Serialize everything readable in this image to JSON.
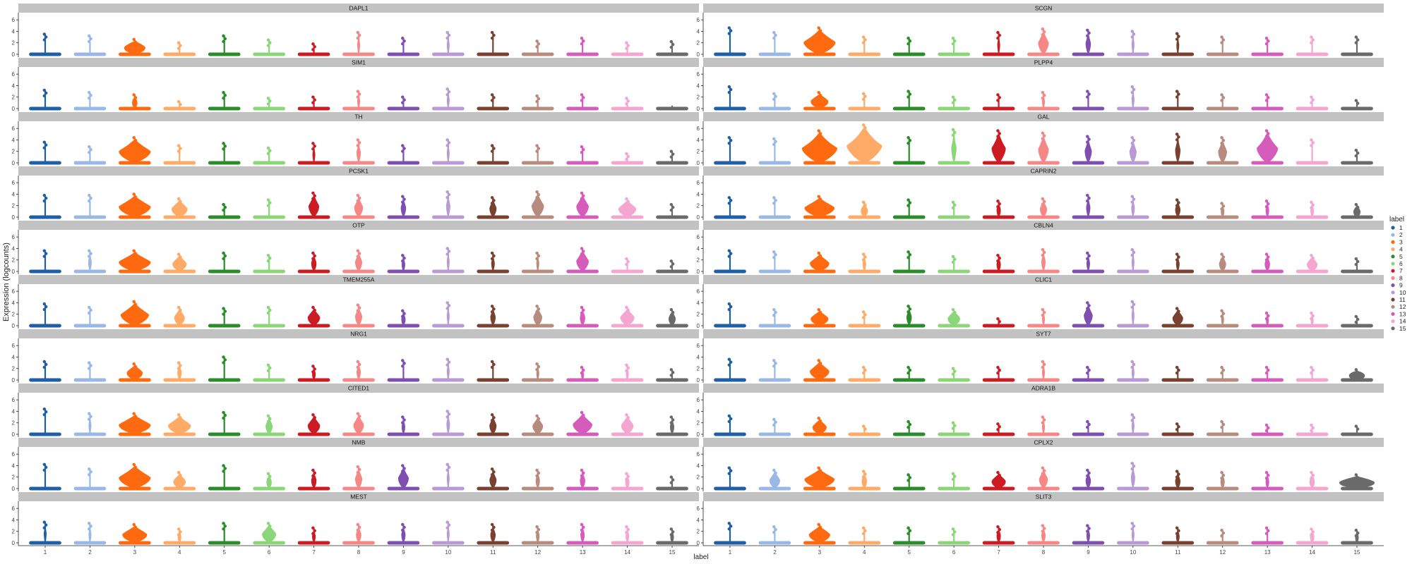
{
  "chart_data": {
    "type": "violin",
    "xlabel": "label",
    "ylabel": "Expression (logcounts)",
    "ylim": [
      0,
      7
    ],
    "yticks": [
      0,
      2,
      4,
      6
    ],
    "categories": [
      "1",
      "2",
      "3",
      "4",
      "5",
      "6",
      "7",
      "8",
      "9",
      "10",
      "11",
      "12",
      "13",
      "14",
      "15"
    ],
    "legend": {
      "title": "label",
      "placement": "right",
      "entries": [
        {
          "label": "1",
          "color": "#1f5fa6"
        },
        {
          "label": "2",
          "color": "#9ab8e4"
        },
        {
          "label": "3",
          "color": "#ff6a10"
        },
        {
          "label": "4",
          "color": "#ffaa66"
        },
        {
          "label": "5",
          "color": "#2a8c2a"
        },
        {
          "label": "6",
          "color": "#8cd67a"
        },
        {
          "label": "7",
          "color": "#cc1b22"
        },
        {
          "label": "8",
          "color": "#f78686"
        },
        {
          "label": "9",
          "color": "#7f4fb0"
        },
        {
          "label": "10",
          "color": "#b99ad4"
        },
        {
          "label": "11",
          "color": "#7a4030"
        },
        {
          "label": "12",
          "color": "#b88b7f"
        },
        {
          "label": "13",
          "color": "#d65cbb"
        },
        {
          "label": "14",
          "color": "#f5a6d0"
        },
        {
          "label": "15",
          "color": "#6a6a6a"
        }
      ]
    },
    "panels": [
      {
        "gene": "DAPL1",
        "max": [
          3.5,
          3.2,
          2.6,
          2.0,
          3.2,
          2.5,
          1.8,
          3.8,
          2.8,
          3.8,
          3.8,
          2.3,
          2.8,
          2.0,
          2.2
        ],
        "width": [
          0.05,
          0.05,
          0.6,
          0.05,
          0.05,
          0.05,
          0.05,
          0.08,
          0.05,
          0.08,
          0.05,
          0.05,
          0.05,
          0.05,
          0.05
        ]
      },
      {
        "gene": "SCGN",
        "max": [
          4.6,
          3.8,
          4.6,
          3.0,
          2.8,
          2.8,
          3.8,
          4.4,
          4.2,
          4.0,
          3.6,
          3.0,
          2.8,
          3.0,
          3.0
        ],
        "width": [
          0.05,
          0.05,
          0.9,
          0.05,
          0.05,
          0.05,
          0.08,
          0.3,
          0.15,
          0.08,
          0.08,
          0.05,
          0.05,
          0.05,
          0.05
        ]
      },
      {
        "gene": "SIM1",
        "max": [
          3.2,
          2.8,
          2.4,
          1.2,
          2.8,
          1.8,
          2.0,
          3.0,
          2.0,
          3.4,
          2.4,
          2.2,
          2.4,
          1.8,
          0.4
        ],
        "width": [
          0.05,
          0.05,
          0.15,
          0.05,
          0.05,
          0.05,
          0.05,
          0.08,
          0.05,
          0.08,
          0.05,
          0.05,
          0.05,
          0.05,
          0.05
        ]
      },
      {
        "gene": "PLPP4",
        "max": [
          3.8,
          2.6,
          2.8,
          2.6,
          3.0,
          2.0,
          2.4,
          2.8,
          3.0,
          3.8,
          3.0,
          2.4,
          2.4,
          2.0,
          1.4
        ],
        "width": [
          0.05,
          0.05,
          0.5,
          0.05,
          0.05,
          0.05,
          0.05,
          0.08,
          0.05,
          0.08,
          0.05,
          0.05,
          0.05,
          0.05,
          0.05
        ]
      },
      {
        "gene": "TH",
        "max": [
          3.6,
          2.8,
          4.4,
          3.0,
          3.4,
          2.6,
          3.4,
          4.0,
          3.0,
          4.0,
          3.0,
          3.0,
          2.8,
          1.6,
          2.0
        ],
        "width": [
          0.05,
          0.05,
          0.9,
          0.05,
          0.05,
          0.05,
          0.08,
          0.12,
          0.05,
          0.08,
          0.05,
          0.05,
          0.05,
          0.05,
          0.05
        ]
      },
      {
        "gene": "GAL",
        "max": [
          4.4,
          4.2,
          5.6,
          6.6,
          4.4,
          5.8,
          5.6,
          5.2,
          4.6,
          4.4,
          5.0,
          4.4,
          5.6,
          4.0,
          2.2
        ],
        "width": [
          0.05,
          0.05,
          1.0,
          1.0,
          0.05,
          0.15,
          0.4,
          0.3,
          0.2,
          0.2,
          0.15,
          0.25,
          0.6,
          0.05,
          0.05
        ]
      },
      {
        "gene": "PCSK1",
        "max": [
          3.8,
          3.8,
          4.0,
          3.2,
          2.2,
          3.0,
          4.2,
          3.8,
          3.6,
          4.4,
          3.4,
          4.4,
          4.2,
          3.2,
          2.2
        ],
        "width": [
          0.05,
          0.05,
          0.9,
          0.45,
          0.05,
          0.05,
          0.3,
          0.25,
          0.15,
          0.12,
          0.2,
          0.35,
          0.35,
          0.5,
          0.05
        ]
      },
      {
        "gene": "CAPRIN2",
        "max": [
          3.4,
          3.4,
          3.6,
          2.6,
          3.0,
          2.6,
          2.8,
          3.2,
          3.8,
          3.6,
          3.0,
          2.4,
          2.8,
          2.6,
          2.2
        ],
        "width": [
          0.05,
          0.05,
          0.85,
          0.2,
          0.05,
          0.05,
          0.12,
          0.2,
          0.12,
          0.1,
          0.15,
          0.1,
          0.1,
          0.1,
          0.2
        ]
      },
      {
        "gene": "OTP",
        "max": [
          3.6,
          3.6,
          3.6,
          3.0,
          3.2,
          2.8,
          3.2,
          3.6,
          2.8,
          4.0,
          3.2,
          3.2,
          4.0,
          2.2,
          1.8
        ],
        "width": [
          0.05,
          0.1,
          0.9,
          0.4,
          0.05,
          0.05,
          0.15,
          0.2,
          0.1,
          0.08,
          0.1,
          0.08,
          0.35,
          0.05,
          0.05
        ]
      },
      {
        "gene": "CBLN4",
        "max": [
          3.6,
          3.4,
          3.2,
          3.0,
          3.4,
          2.6,
          2.8,
          3.8,
          3.2,
          3.8,
          3.0,
          3.0,
          3.0,
          2.8,
          2.2
        ],
        "width": [
          0.05,
          0.05,
          0.55,
          0.1,
          0.05,
          0.05,
          0.12,
          0.12,
          0.1,
          0.08,
          0.1,
          0.2,
          0.15,
          0.3,
          0.05
        ]
      },
      {
        "gene": "TMEM255A",
        "max": [
          3.8,
          3.2,
          4.2,
          3.2,
          3.0,
          3.2,
          3.2,
          3.6,
          2.6,
          4.0,
          3.4,
          3.4,
          3.2,
          3.2,
          2.8
        ],
        "width": [
          0.05,
          0.05,
          0.8,
          0.3,
          0.05,
          0.05,
          0.35,
          0.2,
          0.12,
          0.08,
          0.15,
          0.25,
          0.15,
          0.4,
          0.2
        ]
      },
      {
        "gene": "CLIC1",
        "max": [
          3.8,
          2.8,
          2.8,
          2.4,
          3.4,
          2.8,
          1.2,
          2.8,
          4.0,
          4.2,
          3.0,
          2.6,
          2.2,
          2.2,
          1.6
        ],
        "width": [
          0.05,
          0.05,
          0.5,
          0.05,
          0.15,
          0.35,
          0.05,
          0.08,
          0.25,
          0.08,
          0.3,
          0.08,
          0.08,
          0.08,
          0.05
        ]
      },
      {
        "gene": "NRG1",
        "max": [
          3.2,
          3.0,
          2.8,
          3.0,
          4.0,
          2.6,
          2.4,
          3.2,
          3.4,
          3.6,
          3.2,
          2.8,
          2.2,
          2.6,
          1.8
        ],
        "width": [
          0.05,
          0.05,
          0.45,
          0.12,
          0.05,
          0.05,
          0.1,
          0.12,
          0.05,
          0.08,
          0.05,
          0.08,
          0.08,
          0.08,
          0.05
        ]
      },
      {
        "gene": "SYT7",
        "max": [
          3.6,
          3.4,
          3.4,
          2.2,
          2.2,
          2.0,
          2.2,
          3.2,
          2.2,
          3.2,
          2.2,
          2.2,
          2.2,
          2.2,
          1.8
        ],
        "width": [
          0.05,
          0.05,
          0.55,
          0.05,
          0.05,
          0.05,
          0.05,
          0.08,
          0.05,
          0.08,
          0.05,
          0.05,
          0.05,
          0.05,
          0.45
        ]
      },
      {
        "gene": "CITED1",
        "max": [
          4.4,
          3.6,
          3.6,
          3.4,
          3.8,
          3.2,
          3.4,
          3.6,
          3.0,
          4.0,
          3.4,
          3.2,
          3.8,
          3.4,
          3.0
        ],
        "width": [
          0.05,
          0.08,
          0.9,
          0.65,
          0.05,
          0.2,
          0.35,
          0.3,
          0.1,
          0.1,
          0.2,
          0.3,
          0.55,
          0.35,
          0.12
        ]
      },
      {
        "gene": "ADRA1B",
        "max": [
          3.2,
          2.6,
          2.8,
          1.4,
          2.2,
          2.0,
          1.8,
          3.0,
          2.2,
          3.4,
          1.8,
          2.2,
          1.6,
          1.6,
          1.4
        ],
        "width": [
          0.05,
          0.05,
          0.4,
          0.05,
          0.05,
          0.05,
          0.05,
          0.08,
          0.05,
          0.08,
          0.05,
          0.05,
          0.05,
          0.05,
          0.05
        ]
      },
      {
        "gene": "NMB",
        "max": [
          4.2,
          3.4,
          4.2,
          2.8,
          4.0,
          2.6,
          3.2,
          3.8,
          4.0,
          4.2,
          3.4,
          3.2,
          3.2,
          2.6,
          2.0
        ],
        "width": [
          0.05,
          0.05,
          0.9,
          0.35,
          0.05,
          0.15,
          0.15,
          0.2,
          0.3,
          0.08,
          0.2,
          0.12,
          0.15,
          0.12,
          0.05
        ]
      },
      {
        "gene": "CPLX2",
        "max": [
          3.6,
          3.2,
          3.6,
          3.0,
          2.4,
          2.6,
          2.8,
          3.6,
          3.2,
          4.4,
          3.0,
          2.8,
          2.8,
          2.8,
          2.4
        ],
        "width": [
          0.05,
          0.3,
          0.85,
          0.15,
          0.05,
          0.05,
          0.4,
          0.25,
          0.15,
          0.12,
          0.15,
          0.12,
          0.1,
          0.15,
          1.0
        ]
      },
      {
        "gene": "MEST",
        "max": [
          3.6,
          3.4,
          3.2,
          2.4,
          3.4,
          3.4,
          2.6,
          3.2,
          3.2,
          3.6,
          3.2,
          2.8,
          3.2,
          2.8,
          2.4
        ],
        "width": [
          0.08,
          0.08,
          0.7,
          0.1,
          0.05,
          0.4,
          0.1,
          0.15,
          0.12,
          0.08,
          0.15,
          0.1,
          0.12,
          0.1,
          0.1
        ]
      },
      {
        "gene": "SLIT3",
        "max": [
          3.4,
          2.8,
          3.2,
          2.6,
          2.6,
          2.4,
          2.8,
          3.0,
          3.0,
          3.4,
          2.6,
          2.2,
          2.6,
          2.4,
          2.2
        ],
        "width": [
          0.05,
          0.05,
          0.6,
          0.05,
          0.05,
          0.05,
          0.12,
          0.12,
          0.1,
          0.08,
          0.1,
          0.05,
          0.05,
          0.12,
          0.1
        ]
      }
    ]
  }
}
